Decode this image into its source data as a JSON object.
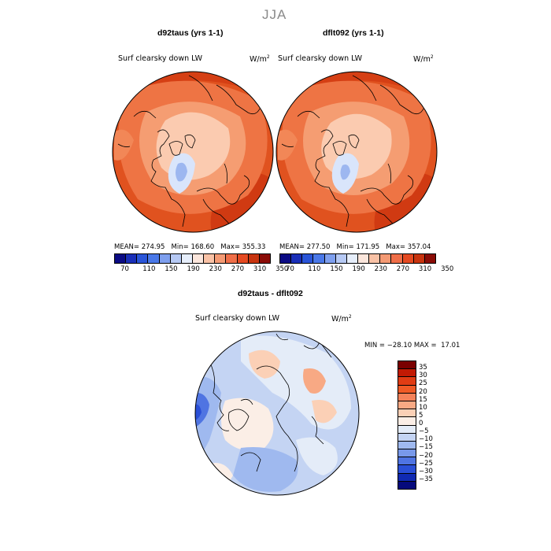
{
  "figure_title": "JJA",
  "panels": [
    {
      "title": "d92taus (yrs 1-1)",
      "field": "Surf clearsky down LW",
      "units": "W/m",
      "units_sup": "2",
      "stats": "MEAN= 274.95   Min= 168.60   Max= 355.33"
    },
    {
      "title": "dflt092 (yrs 1-1)",
      "field": "Surf clearsky down LW",
      "units": "W/m",
      "units_sup": "2",
      "stats": "MEAN= 277.50   Min= 171.95   Max= 357.04"
    }
  ],
  "colorbar_top": {
    "colors": [
      "#0b0b84",
      "#1a2fb8",
      "#2a55d8",
      "#4a78e8",
      "#7e9fee",
      "#b6c9f4",
      "#e6eefb",
      "#fbe6dc",
      "#f9c2a6",
      "#f49a74",
      "#ef6e48",
      "#e54a22",
      "#c8340f",
      "#8a0c06"
    ],
    "ticks": [
      "70",
      "110",
      "150",
      "190",
      "230",
      "270",
      "310",
      "350"
    ]
  },
  "diff_panel": {
    "title": "d92taus - dflt092",
    "field": "Surf clearsky down LW",
    "units": "W/m",
    "units_sup": "2",
    "stats": "MIN = −28.10 MAX =  17.01"
  },
  "colorbar_diff": {
    "colors": [
      "#7a0000",
      "#c21a04",
      "#e03c14",
      "#ef5a26",
      "#f5825a",
      "#f8a984",
      "#fbd0b6",
      "#fbeee6",
      "#e4ecf8",
      "#c4d4f3",
      "#9fb9ef",
      "#7899ea",
      "#4f74e2",
      "#2a4fd6",
      "#102ab2",
      "#060a7c"
    ],
    "labels": [
      "35",
      "30",
      "25",
      "20",
      "15",
      "10",
      "5",
      "0",
      "−5",
      "−10",
      "−15",
      "−20",
      "−25",
      "−30",
      "−35"
    ]
  }
}
